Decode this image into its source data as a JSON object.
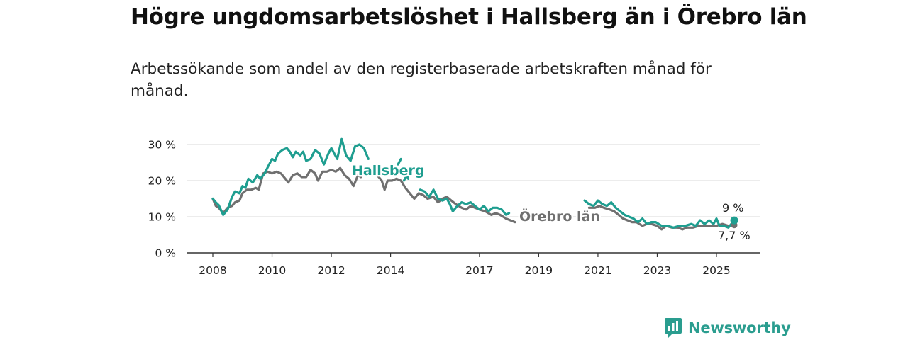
{
  "title": "Högre ungdomsarbetslöshet i Hallsberg än i Örebro län",
  "subtitle": "Arbetssökande som andel av den registerbaserade arbetskraften månad för månad.",
  "brand": {
    "name": "Newsworthy"
  },
  "colors": {
    "hallsberg": "#1f9e90",
    "orebro": "#707070",
    "grid": "#d8d8d8"
  },
  "chart_data": {
    "type": "line",
    "y_ticks": [
      "0 %",
      "10 %",
      "20 %",
      "30 %"
    ],
    "y_tick_values": [
      0,
      10,
      20,
      30
    ],
    "x_ticks": [
      "2008",
      "2010",
      "2012",
      "2014",
      "2017",
      "2019",
      "2021",
      "2023",
      "2025"
    ],
    "x_tick_values": [
      2008,
      2010,
      2012,
      2014,
      2017,
      2019,
      2021,
      2023,
      2025
    ],
    "xlim": [
      2007.6,
      2026.2
    ],
    "ylim": [
      0,
      30
    ],
    "grid": true,
    "series": [
      {
        "name": "Hallsberg",
        "color": "#1f9e90",
        "end_label": "9 %",
        "points": [
          [
            2008.0,
            15.0
          ],
          [
            2008.1,
            14.0
          ],
          [
            2008.2,
            13.2
          ],
          [
            2008.35,
            10.5
          ],
          [
            2008.5,
            12.0
          ],
          [
            2008.65,
            15.5
          ],
          [
            2008.75,
            17.0
          ],
          [
            2008.9,
            16.5
          ],
          [
            2009.0,
            18.5
          ],
          [
            2009.1,
            18.0
          ],
          [
            2009.2,
            20.5
          ],
          [
            2009.35,
            19.5
          ],
          [
            2009.5,
            21.5
          ],
          [
            2009.6,
            20.5
          ],
          [
            2009.75,
            22.0
          ],
          [
            2009.9,
            24.5
          ],
          [
            2010.0,
            26.0
          ],
          [
            2010.1,
            25.5
          ],
          [
            2010.2,
            27.5
          ],
          [
            2010.35,
            28.5
          ],
          [
            2010.5,
            29.0
          ],
          [
            2010.6,
            28.0
          ],
          [
            2010.7,
            26.5
          ],
          [
            2010.8,
            28.0
          ],
          [
            2010.95,
            27.0
          ],
          [
            2011.05,
            28.0
          ],
          [
            2011.15,
            25.5
          ],
          [
            2011.3,
            26.0
          ],
          [
            2011.45,
            28.5
          ],
          [
            2011.6,
            27.5
          ],
          [
            2011.75,
            24.5
          ],
          [
            2011.9,
            27.5
          ],
          [
            2012.0,
            29.0
          ],
          [
            2012.1,
            27.5
          ],
          [
            2012.2,
            26.0
          ],
          [
            2012.35,
            31.5
          ],
          [
            2012.5,
            27.0
          ],
          [
            2012.65,
            25.5
          ],
          [
            2012.8,
            29.5
          ],
          [
            2012.95,
            30.0
          ],
          [
            2013.1,
            29.0
          ],
          [
            2013.25,
            26.0
          ],
          null,
          [
            2014.25,
            24.5
          ],
          [
            2014.35,
            26.0
          ],
          null,
          [
            2014.45,
            20.0
          ],
          [
            2014.55,
            21.5
          ],
          [
            2014.6,
            20.5
          ],
          null,
          [
            2015.0,
            17.5
          ],
          [
            2015.15,
            17.0
          ],
          [
            2015.3,
            15.5
          ],
          [
            2015.45,
            17.5
          ],
          [
            2015.6,
            15.0
          ],
          [
            2015.75,
            14.5
          ],
          [
            2015.9,
            15.0
          ],
          [
            2016.0,
            13.5
          ],
          [
            2016.1,
            11.5
          ],
          [
            2016.25,
            13.0
          ],
          [
            2016.4,
            14.0
          ],
          [
            2016.55,
            13.5
          ],
          [
            2016.7,
            14.0
          ],
          [
            2016.85,
            13.0
          ],
          [
            2017.0,
            12.0
          ],
          [
            2017.15,
            13.0
          ],
          [
            2017.3,
            11.5
          ],
          [
            2017.45,
            12.5
          ],
          [
            2017.6,
            12.5
          ],
          [
            2017.75,
            12.0
          ],
          [
            2017.9,
            10.5
          ],
          [
            2018.0,
            11.0
          ],
          null,
          [
            2020.55,
            14.5
          ],
          [
            2020.7,
            13.5
          ],
          [
            2020.85,
            13.0
          ],
          [
            2021.0,
            14.5
          ],
          [
            2021.15,
            13.5
          ],
          [
            2021.3,
            13.0
          ],
          [
            2021.45,
            14.0
          ],
          [
            2021.6,
            12.5
          ],
          [
            2021.75,
            11.5
          ],
          [
            2021.9,
            10.5
          ],
          [
            2022.05,
            10.0
          ],
          [
            2022.2,
            9.5
          ],
          [
            2022.35,
            8.5
          ],
          [
            2022.5,
            9.5
          ],
          [
            2022.65,
            8.0
          ],
          [
            2022.8,
            8.5
          ],
          [
            2022.95,
            8.5
          ],
          [
            2023.15,
            7.5
          ],
          [
            2023.35,
            7.5
          ],
          [
            2023.55,
            7.0
          ],
          [
            2023.75,
            7.5
          ],
          [
            2023.95,
            7.5
          ],
          [
            2024.15,
            8.0
          ],
          [
            2024.3,
            7.5
          ],
          [
            2024.45,
            9.0
          ],
          [
            2024.6,
            8.0
          ],
          [
            2024.75,
            9.0
          ],
          [
            2024.9,
            8.0
          ],
          [
            2025.0,
            9.5
          ],
          [
            2025.1,
            7.5
          ],
          [
            2025.25,
            7.5
          ],
          [
            2025.4,
            7.0
          ],
          [
            2025.6,
            9.0
          ]
        ]
      },
      {
        "name": "Örebro län",
        "color": "#707070",
        "end_label": "7,7 %",
        "points": [
          [
            2008.0,
            15.0
          ],
          [
            2008.1,
            13.0
          ],
          [
            2008.2,
            12.5
          ],
          [
            2008.35,
            11.0
          ],
          [
            2008.5,
            12.5
          ],
          [
            2008.65,
            13.0
          ],
          [
            2008.75,
            14.0
          ],
          [
            2008.9,
            14.5
          ],
          [
            2009.0,
            16.5
          ],
          [
            2009.15,
            17.5
          ],
          [
            2009.3,
            17.5
          ],
          [
            2009.45,
            18.0
          ],
          [
            2009.55,
            17.5
          ],
          [
            2009.7,
            22.0
          ],
          [
            2009.85,
            22.5
          ],
          [
            2010.0,
            22.0
          ],
          [
            2010.15,
            22.5
          ],
          [
            2010.3,
            22.0
          ],
          [
            2010.45,
            20.5
          ],
          [
            2010.55,
            19.5
          ],
          [
            2010.7,
            21.5
          ],
          [
            2010.85,
            22.0
          ],
          [
            2011.0,
            21.0
          ],
          [
            2011.15,
            21.0
          ],
          [
            2011.3,
            23.0
          ],
          [
            2011.45,
            22.0
          ],
          [
            2011.55,
            20.0
          ],
          [
            2011.7,
            22.5
          ],
          [
            2011.85,
            22.5
          ],
          [
            2012.0,
            23.0
          ],
          [
            2012.15,
            22.5
          ],
          [
            2012.3,
            23.5
          ],
          [
            2012.45,
            21.5
          ],
          [
            2012.6,
            20.5
          ],
          [
            2012.75,
            18.5
          ],
          [
            2012.9,
            21.5
          ],
          [
            2013.0,
            21.0
          ],
          [
            2013.1,
            22.5
          ],
          null,
          [
            2013.55,
            21.5
          ],
          [
            2013.7,
            20.0
          ],
          [
            2013.8,
            17.5
          ],
          [
            2013.9,
            20.0
          ],
          [
            2014.05,
            20.0
          ],
          [
            2014.2,
            20.5
          ],
          [
            2014.35,
            20.0
          ],
          [
            2014.5,
            18.0
          ],
          [
            2014.65,
            16.5
          ],
          [
            2014.8,
            15.0
          ],
          [
            2014.95,
            16.5
          ],
          [
            2015.1,
            16.0
          ],
          [
            2015.25,
            15.0
          ],
          [
            2015.45,
            15.5
          ],
          [
            2015.6,
            14.0
          ],
          [
            2015.75,
            15.0
          ],
          [
            2015.9,
            15.5
          ],
          [
            2016.05,
            14.5
          ],
          [
            2016.2,
            13.5
          ],
          [
            2016.4,
            12.5
          ],
          [
            2016.55,
            12.0
          ],
          [
            2016.7,
            13.0
          ],
          [
            2016.85,
            12.5
          ],
          [
            2017.0,
            12.0
          ],
          [
            2017.2,
            11.5
          ],
          [
            2017.4,
            10.5
          ],
          [
            2017.55,
            11.0
          ],
          [
            2017.7,
            10.5
          ],
          [
            2017.9,
            9.5
          ],
          [
            2018.05,
            9.0
          ],
          [
            2018.2,
            8.5
          ],
          null,
          [
            2020.7,
            12.5
          ],
          [
            2020.9,
            12.5
          ],
          [
            2021.05,
            13.0
          ],
          [
            2021.2,
            12.5
          ],
          [
            2021.4,
            12.0
          ],
          [
            2021.55,
            11.5
          ],
          [
            2021.7,
            10.5
          ],
          [
            2021.85,
            9.5
          ],
          [
            2022.0,
            9.0
          ],
          [
            2022.15,
            8.5
          ],
          [
            2022.3,
            8.5
          ],
          [
            2022.5,
            7.5
          ],
          [
            2022.65,
            8.0
          ],
          [
            2022.8,
            8.0
          ],
          [
            2023.0,
            7.5
          ],
          [
            2023.15,
            6.5
          ],
          [
            2023.3,
            7.5
          ],
          [
            2023.5,
            7.0
          ],
          [
            2023.7,
            7.0
          ],
          [
            2023.85,
            6.5
          ],
          [
            2024.0,
            7.0
          ],
          [
            2024.2,
            7.0
          ],
          [
            2024.4,
            7.5
          ],
          [
            2024.6,
            7.5
          ],
          [
            2024.8,
            7.5
          ],
          [
            2025.0,
            7.5
          ],
          [
            2025.2,
            8.0
          ],
          [
            2025.4,
            7.5
          ],
          [
            2025.6,
            7.7
          ]
        ]
      }
    ],
    "annotations": [
      "Hallsberg",
      "Örebro län"
    ]
  }
}
